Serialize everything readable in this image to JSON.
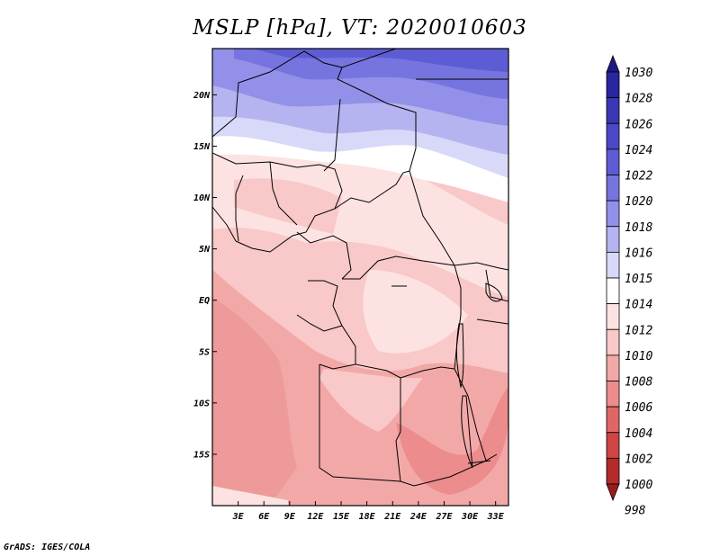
{
  "title": "MSLP [hPa], VT: 2020010603",
  "footer": "GrADS: IGES/COLA",
  "map": {
    "lon_range": [
      0,
      34.5
    ],
    "lat_range": [
      -20,
      24.5
    ],
    "lon_ticks": [
      {
        "value": 3,
        "label": "3E"
      },
      {
        "value": 6,
        "label": "6E"
      },
      {
        "value": 9,
        "label": "9E"
      },
      {
        "value": 12,
        "label": "12E"
      },
      {
        "value": 15,
        "label": "15E"
      },
      {
        "value": 18,
        "label": "18E"
      },
      {
        "value": 21,
        "label": "21E"
      },
      {
        "value": 24,
        "label": "24E"
      },
      {
        "value": 27,
        "label": "27E"
      },
      {
        "value": 30,
        "label": "30E"
      },
      {
        "value": 33,
        "label": "33E"
      }
    ],
    "lat_ticks": [
      {
        "value": 20,
        "label": "20N"
      },
      {
        "value": 15,
        "label": "15N"
      },
      {
        "value": 10,
        "label": "10N"
      },
      {
        "value": 5,
        "label": "5N"
      },
      {
        "value": 0,
        "label": "EQ"
      },
      {
        "value": -5,
        "label": "5S"
      },
      {
        "value": -10,
        "label": "10S"
      },
      {
        "value": -15,
        "label": "15S"
      }
    ]
  },
  "colorbar": {
    "levels": [
      {
        "label": "1030",
        "color": "#1e1a85"
      },
      {
        "label": "1028",
        "color": "#2a26a0"
      },
      {
        "label": "1026",
        "color": "#3a37b5"
      },
      {
        "label": "1024",
        "color": "#4b49c6"
      },
      {
        "label": "1022",
        "color": "#5e5cd4"
      },
      {
        "label": "1020",
        "color": "#7674df"
      },
      {
        "label": "1018",
        "color": "#9290e8"
      },
      {
        "label": "1016",
        "color": "#b5b4f0"
      },
      {
        "label": "1015",
        "color": "#d8d8f8"
      },
      {
        "label": "1014",
        "color": "#ffffff"
      },
      {
        "label": "1012",
        "color": "#fde2e2"
      },
      {
        "label": "1010",
        "color": "#f9c8c8"
      },
      {
        "label": "1008",
        "color": "#f3a8a8"
      },
      {
        "label": "1006",
        "color": "#ec8c8c"
      },
      {
        "label": "1004",
        "color": "#e06666"
      },
      {
        "label": "1002",
        "color": "#cf4444"
      },
      {
        "label": "1000",
        "color": "#b52a2a"
      },
      {
        "label": "998",
        "color": "#981b1b"
      }
    ]
  }
}
